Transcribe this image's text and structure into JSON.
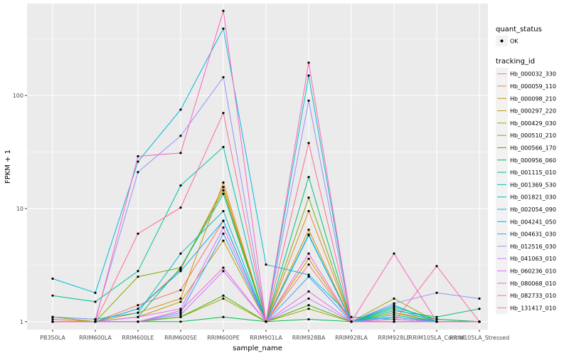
{
  "chart_data": {
    "type": "line",
    "xlabel": "sample_name",
    "ylabel": "FPKM + 1",
    "y_scale": "log10",
    "ylim": [
      0.85,
      650
    ],
    "y_ticks": [
      1,
      10,
      100
    ],
    "y_tick_labels": [
      "1",
      "10",
      "100"
    ],
    "grid": true,
    "legend_position": "right",
    "categories": [
      "PB350LA",
      "RRIM600LA",
      "RRIM600LE",
      "RRIM600SE",
      "RRIM600PE",
      "RRIM901LA",
      "RRIM928BA",
      "RRIM928LA",
      "RRIM928LE",
      "RRIM105LA_Control",
      "RRIM105LA_Stressed"
    ],
    "quant_status": {
      "title": "quant_status",
      "entries": [
        "OK"
      ]
    },
    "tracking_legend_title": "tracking_id",
    "series": [
      {
        "name": "Hb_000032_330",
        "color": "#F8766D",
        "values": [
          1.0,
          1.0,
          1.4,
          1.9,
          7.8,
          1.0,
          3.2,
          1.0,
          1.2,
          1.05,
          1.0
        ]
      },
      {
        "name": "Hb_000059_110",
        "color": "#EA8331",
        "values": [
          1.05,
          1.0,
          1.3,
          2.9,
          15.5,
          1.0,
          9.5,
          1.0,
          1.1,
          1.0,
          1.0
        ]
      },
      {
        "name": "Hb_000098_210",
        "color": "#D89000",
        "values": [
          1.0,
          1.0,
          1.2,
          1.6,
          17.0,
          1.0,
          6.5,
          1.0,
          1.05,
          1.0,
          1.0
        ]
      },
      {
        "name": "Hb_000297_220",
        "color": "#C09B00",
        "values": [
          1.0,
          1.0,
          1.1,
          1.5,
          5.2,
          1.0,
          3.6,
          1.0,
          1.1,
          1.0,
          1.0
        ]
      },
      {
        "name": "Hb_000429_030",
        "color": "#A3A500",
        "values": [
          1.0,
          1.0,
          1.0,
          1.1,
          1.6,
          1.0,
          1.3,
          1.0,
          1.6,
          1.0,
          1.0
        ]
      },
      {
        "name": "Hb_000510_210",
        "color": "#7CAE00",
        "values": [
          1.1,
          1.0,
          2.5,
          3.0,
          14.5,
          1.0,
          12.5,
          1.0,
          1.2,
          1.0,
          1.0
        ]
      },
      {
        "name": "Hb_000566_170",
        "color": "#39B600",
        "values": [
          1.0,
          1.0,
          1.0,
          1.1,
          1.7,
          1.0,
          1.4,
          1.0,
          1.0,
          1.0,
          1.0
        ]
      },
      {
        "name": "Hb_000956_060",
        "color": "#00BB4E",
        "values": [
          1.0,
          1.0,
          1.0,
          1.0,
          1.1,
          1.0,
          1.05,
          1.0,
          1.35,
          1.05,
          1.0
        ]
      },
      {
        "name": "Hb_001115_010",
        "color": "#00BF7D",
        "values": [
          1.0,
          1.0,
          1.1,
          3.0,
          13.5,
          1.0,
          19.0,
          1.0,
          1.25,
          1.1,
          1.3
        ]
      },
      {
        "name": "Hb_001369_530",
        "color": "#00C1A3",
        "values": [
          1.7,
          1.5,
          2.8,
          16.0,
          35.0,
          1.0,
          5.9,
          1.0,
          1.15,
          1.0,
          1.0
        ]
      },
      {
        "name": "Hb_001821_030",
        "color": "#00BFC4",
        "values": [
          1.1,
          1.05,
          1.2,
          4.0,
          9.5,
          1.0,
          150.0,
          1.0,
          1.3,
          1.0,
          1.0
        ]
      },
      {
        "name": "Hb_002054_090",
        "color": "#00BAE0",
        "values": [
          2.4,
          1.8,
          26.0,
          75.0,
          390.0,
          3.2,
          2.6,
          1.1,
          1.05,
          1.0,
          1.0
        ]
      },
      {
        "name": "Hb_004241_050",
        "color": "#00B0F6",
        "values": [
          1.0,
          1.0,
          1.3,
          2.8,
          7.8,
          1.0,
          5.8,
          1.0,
          1.4,
          1.0,
          1.0
        ]
      },
      {
        "name": "Hb_004631_030",
        "color": "#35A2FF",
        "values": [
          1.0,
          1.0,
          1.0,
          1.2,
          6.0,
          1.0,
          2.5,
          1.0,
          1.1,
          1.0,
          1.0
        ]
      },
      {
        "name": "Hb_012516_030",
        "color": "#9590FF",
        "values": [
          1.1,
          1.05,
          21.0,
          44.0,
          145.0,
          1.0,
          90.0,
          1.0,
          1.45,
          1.8,
          1.6
        ]
      },
      {
        "name": "Hb_041063_010",
        "color": "#C77CFF",
        "values": [
          1.0,
          1.0,
          1.0,
          1.15,
          2.8,
          1.0,
          1.6,
          1.0,
          1.0,
          1.0,
          1.0
        ]
      },
      {
        "name": "Hb_060236_010",
        "color": "#E76BF3",
        "values": [
          1.0,
          1.0,
          1.1,
          1.3,
          6.8,
          1.0,
          1.85,
          1.0,
          1.05,
          1.0,
          1.0
        ]
      },
      {
        "name": "Hb_080068_010",
        "color": "#FA62DB",
        "values": [
          1.0,
          1.0,
          1.0,
          1.25,
          3.0,
          1.0,
          4.0,
          1.0,
          1.0,
          1.0,
          1.0
        ]
      },
      {
        "name": "Hb_082733_010",
        "color": "#FF62BC",
        "values": [
          1.0,
          1.0,
          29.0,
          31.0,
          560.0,
          1.0,
          195.0,
          1.0,
          4.0,
          1.0,
          1.0
        ]
      },
      {
        "name": "Hb_131417_010",
        "color": "#FF6C91",
        "values": [
          1.0,
          1.0,
          6.0,
          10.2,
          70.0,
          1.0,
          38.0,
          1.0,
          1.0,
          3.1,
          1.0
        ]
      }
    ]
  }
}
